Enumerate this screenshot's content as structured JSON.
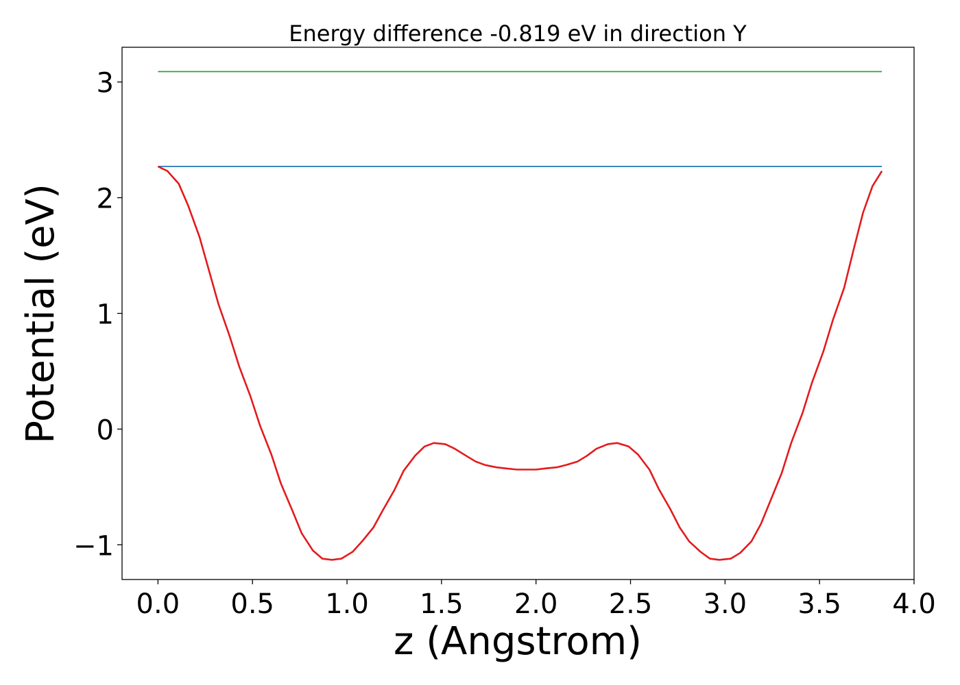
{
  "chart_data": {
    "type": "line",
    "title": "Energy difference -0.819 eV in direction Y",
    "xlabel": "z (Angstrom)",
    "ylabel": "Potential (eV)",
    "xlim": [
      -0.19,
      4.0
    ],
    "ylim": [
      -1.3,
      3.3
    ],
    "xticks": [
      0.0,
      0.5,
      1.0,
      1.5,
      2.0,
      2.5,
      3.0,
      3.5,
      4.0
    ],
    "xtick_labels": [
      "0.0",
      "0.5",
      "1.0",
      "1.5",
      "2.0",
      "2.5",
      "3.0",
      "3.5",
      "4.0"
    ],
    "yticks": [
      -1,
      0,
      1,
      2,
      3
    ],
    "ytick_labels": [
      "−1",
      "0",
      "1",
      "2",
      "3"
    ],
    "grid": false,
    "legend": "none",
    "series": [
      {
        "color": "#2ca02c",
        "x": [
          0.0,
          3.83
        ],
        "y": [
          3.09,
          3.09
        ]
      },
      {
        "color": "#1f77b4",
        "x": [
          0.0,
          3.83
        ],
        "y": [
          2.27,
          2.27
        ]
      },
      {
        "color": "#e31a1c",
        "x": [
          0.0,
          0.05,
          0.11,
          0.16,
          0.22,
          0.27,
          0.32,
          0.38,
          0.43,
          0.49,
          0.54,
          0.6,
          0.65,
          0.71,
          0.76,
          0.82,
          0.87,
          0.92,
          0.97,
          1.03,
          1.08,
          1.14,
          1.19,
          1.25,
          1.3,
          1.36,
          1.41,
          1.46,
          1.52,
          1.57,
          1.63,
          1.68,
          1.73,
          1.79,
          1.84,
          1.9,
          1.95,
          2.0,
          2.05,
          2.11,
          2.16,
          2.22,
          2.27,
          2.32,
          2.38,
          2.43,
          2.49,
          2.54,
          2.6,
          2.65,
          2.71,
          2.76,
          2.81,
          2.87,
          2.92,
          2.97,
          3.03,
          3.08,
          3.14,
          3.19,
          3.24,
          3.3,
          3.35,
          3.41,
          3.46,
          3.52,
          3.57,
          3.63,
          3.68,
          3.73,
          3.78,
          3.83
        ],
        "y": [
          2.27,
          2.23,
          2.12,
          1.93,
          1.66,
          1.37,
          1.08,
          0.8,
          0.54,
          0.28,
          0.03,
          -0.22,
          -0.47,
          -0.7,
          -0.9,
          -1.05,
          -1.12,
          -1.13,
          -1.12,
          -1.06,
          -0.97,
          -0.85,
          -0.7,
          -0.53,
          -0.36,
          -0.23,
          -0.15,
          -0.12,
          -0.13,
          -0.17,
          -0.23,
          -0.28,
          -0.31,
          -0.33,
          -0.34,
          -0.35,
          -0.35,
          -0.35,
          -0.34,
          -0.33,
          -0.31,
          -0.28,
          -0.23,
          -0.17,
          -0.13,
          -0.12,
          -0.15,
          -0.22,
          -0.35,
          -0.52,
          -0.69,
          -0.85,
          -0.97,
          -1.06,
          -1.12,
          -1.13,
          -1.12,
          -1.07,
          -0.97,
          -0.82,
          -0.62,
          -0.38,
          -0.12,
          0.14,
          0.4,
          0.67,
          0.94,
          1.22,
          1.55,
          1.87,
          2.1,
          2.23
        ]
      }
    ]
  }
}
